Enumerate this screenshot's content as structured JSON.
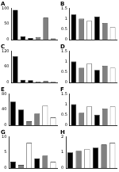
{
  "chart_data": [
    {
      "type": "bar",
      "title": "A",
      "categories": [
        null,
        null,
        null,
        null,
        null,
        null
      ],
      "values": [
        95,
        10,
        5,
        8,
        70,
        4
      ],
      "colors": [
        "#000000",
        "#000000",
        "#000000",
        "#808080",
        "#808080",
        "#808080"
      ],
      "ylim": [
        0,
        100
      ],
      "yticks": [
        0,
        50,
        100
      ],
      "grid": false,
      "tick_labels": "y"
    },
    {
      "type": "bar",
      "title": "B",
      "categories": [
        null,
        null,
        null,
        null,
        null,
        null
      ],
      "values": [
        1.2,
        1.0,
        0.9,
        1.1,
        0.8,
        0.6
      ],
      "colors": [
        "#000000",
        "#808080",
        "#ffffff",
        "#000000",
        "#808080",
        "#ffffff"
      ],
      "ylim": [
        0,
        1.5
      ],
      "yticks": [
        0,
        0.5,
        1,
        1.5
      ],
      "grid": false,
      "tick_labels": "y"
    },
    {
      "type": "bar",
      "title": "C",
      "categories": [
        null,
        null,
        null,
        null,
        null,
        null
      ],
      "values": [
        100,
        10,
        8,
        3,
        5,
        2
      ],
      "colors": [
        "#000000",
        "#000000",
        "#000000",
        "#808080",
        "#808080",
        "#808080"
      ],
      "ylim": [
        0,
        120
      ],
      "yticks": [
        0,
        60,
        120
      ],
      "grid": false,
      "tick_labels": "y"
    },
    {
      "type": "bar",
      "title": "D",
      "categories": [
        null,
        null,
        null,
        null,
        null,
        null
      ],
      "values": [
        1.0,
        0.7,
        0.9,
        0.6,
        0.8,
        0.7
      ],
      "colors": [
        "#000000",
        "#808080",
        "#ffffff",
        "#000000",
        "#808080",
        "#ffffff"
      ],
      "ylim": [
        0,
        1.5
      ],
      "yticks": [
        0,
        0.5,
        1,
        1.5
      ],
      "grid": false,
      "tick_labels": "y"
    },
    {
      "type": "bar",
      "title": "E",
      "categories": [
        null,
        null,
        null,
        null,
        null,
        null
      ],
      "values": [
        60,
        40,
        10,
        30,
        50,
        20
      ],
      "colors": [
        "#000000",
        "#000000",
        "#808080",
        "#808080",
        "#ffffff",
        "#ffffff"
      ],
      "ylim": [
        0,
        80
      ],
      "yticks": [
        0,
        40,
        80
      ],
      "grid": false,
      "tick_labels": "y"
    },
    {
      "type": "bar",
      "title": "F",
      "categories": [
        null,
        null,
        null,
        null,
        null,
        null
      ],
      "values": [
        1.0,
        0.6,
        0.9,
        0.5,
        0.8,
        0.9
      ],
      "colors": [
        "#000000",
        "#808080",
        "#ffffff",
        "#000000",
        "#808080",
        "#ffffff"
      ],
      "ylim": [
        0,
        1.5
      ],
      "yticks": [
        0,
        0.5,
        1,
        1.5
      ],
      "grid": false,
      "tick_labels": "y"
    },
    {
      "type": "bar",
      "title": "G",
      "categories": [
        null,
        null,
        null,
        null,
        null,
        null
      ],
      "values": [
        2,
        1,
        8,
        3,
        4,
        2
      ],
      "colors": [
        "#000000",
        "#808080",
        "#ffffff",
        "#000000",
        "#808080",
        "#ffffff"
      ],
      "ylim": [
        0,
        10
      ],
      "yticks": [
        0,
        5,
        10
      ],
      "grid": false,
      "tick_labels": "y"
    },
    {
      "type": "bar",
      "title": "H",
      "categories": [
        null,
        null,
        null,
        null,
        null,
        null
      ],
      "values": [
        1.0,
        1.1,
        1.2,
        1.3,
        1.5,
        1.6
      ],
      "colors": [
        "#000000",
        "#808080",
        "#ffffff",
        "#000000",
        "#808080",
        "#ffffff"
      ],
      "ylim": [
        0,
        2
      ],
      "yticks": [
        0,
        1,
        2
      ],
      "grid": false,
      "tick_labels": "y"
    }
  ]
}
